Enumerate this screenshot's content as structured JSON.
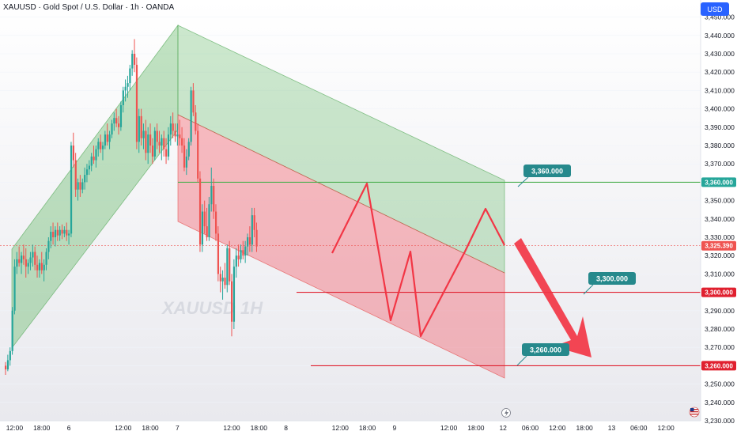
{
  "header": {
    "title": "XAUUSD · Gold Spot / U.S. Dollar · 1h · OANDA"
  },
  "currency_button": "USD",
  "watermark": "XAUUSD 1H",
  "colors": {
    "bull": "#26a69a",
    "bear": "#ef5350",
    "tag_bg": "#26898c",
    "red_line": "#e0202f"
  },
  "chart_data": {
    "type": "candlestick",
    "title": "",
    "y_axis": {
      "min": 3230,
      "max": 3455,
      "ticks": [
        3230,
        3240,
        3250,
        3260,
        3270,
        3280,
        3290,
        3300,
        3310,
        3320,
        3330,
        3340,
        3350,
        3360,
        3370,
        3380,
        3390,
        3400,
        3410,
        3420,
        3430,
        3440,
        3450
      ],
      "tick_labels": [
        "3,230.000",
        "3,240.000",
        "3,250.000",
        "3,260.000",
        "3,270.000",
        "3,280.000",
        "3,290.000",
        "3,300.000",
        "3,310.000",
        "3,320.000",
        "3,330.000",
        "3,340.000",
        "3,350.000",
        "3,360.000",
        "3,370.000",
        "3,380.000",
        "3,390.000",
        "3,400.000",
        "3,410.000",
        "3,420.000",
        "3,430.000",
        "3,440.000",
        "3,450.000"
      ]
    },
    "x_axis": {
      "labels": [
        {
          "bar": 4,
          "text": "12:00"
        },
        {
          "bar": 16,
          "text": "18:00"
        },
        {
          "bar": 28,
          "text": "6"
        },
        {
          "bar": 52,
          "text": "12:00"
        },
        {
          "bar": 64,
          "text": "18:00"
        },
        {
          "bar": 76,
          "text": "7"
        },
        {
          "bar": 100,
          "text": "12:00"
        },
        {
          "bar": 112,
          "text": "18:00"
        },
        {
          "bar": 124,
          "text": "8"
        },
        {
          "bar": 148,
          "text": "12:00"
        },
        {
          "bar": 160,
          "text": "18:00"
        },
        {
          "bar": 172,
          "text": "9"
        },
        {
          "bar": 196,
          "text": "12:00"
        },
        {
          "bar": 208,
          "text": "18:00"
        },
        {
          "bar": 220,
          "text": "12"
        },
        {
          "bar": 232,
          "text": "06:00"
        },
        {
          "bar": 244,
          "text": "12:00"
        },
        {
          "bar": 256,
          "text": "18:00"
        },
        {
          "bar": 268,
          "text": "13"
        },
        {
          "bar": 280,
          "text": "06:00"
        },
        {
          "bar": 292,
          "text": "12:00"
        }
      ]
    },
    "candles": [
      [
        3260,
        3262,
        3255,
        3258
      ],
      [
        3258,
        3266,
        3257,
        3263
      ],
      [
        3263,
        3270,
        3260,
        3268
      ],
      [
        3268,
        3292,
        3266,
        3290
      ],
      [
        3290,
        3318,
        3288,
        3314
      ],
      [
        3314,
        3322,
        3310,
        3318
      ],
      [
        3318,
        3325,
        3314,
        3316
      ],
      [
        3316,
        3322,
        3310,
        3320
      ],
      [
        3320,
        3326,
        3315,
        3318
      ],
      [
        3318,
        3324,
        3308,
        3314
      ],
      [
        3314,
        3318,
        3310,
        3316
      ],
      [
        3316,
        3322,
        3312,
        3319
      ],
      [
        3319,
        3326,
        3314,
        3322
      ],
      [
        3322,
        3325,
        3312,
        3315
      ],
      [
        3315,
        3320,
        3308,
        3312
      ],
      [
        3312,
        3318,
        3308,
        3316
      ],
      [
        3316,
        3322,
        3310,
        3312
      ],
      [
        3312,
        3318,
        3306,
        3315
      ],
      [
        3315,
        3324,
        3312,
        3322
      ],
      [
        3322,
        3330,
        3318,
        3328
      ],
      [
        3328,
        3336,
        3324,
        3333
      ],
      [
        3333,
        3338,
        3326,
        3330
      ],
      [
        3330,
        3336,
        3325,
        3334
      ],
      [
        3334,
        3338,
        3328,
        3331
      ],
      [
        3331,
        3336,
        3328,
        3334
      ],
      [
        3334,
        3337,
        3329,
        3332
      ],
      [
        3332,
        3336,
        3330,
        3334
      ],
      [
        3334,
        3338,
        3328,
        3331
      ],
      [
        3331,
        3334,
        3326,
        3332
      ],
      [
        3332,
        3382,
        3330,
        3380
      ],
      [
        3380,
        3387,
        3368,
        3372
      ],
      [
        3372,
        3376,
        3352,
        3356
      ],
      [
        3356,
        3362,
        3350,
        3360
      ],
      [
        3360,
        3364,
        3352,
        3356
      ],
      [
        3356,
        3362,
        3354,
        3360
      ],
      [
        3360,
        3368,
        3356,
        3364
      ],
      [
        3364,
        3370,
        3360,
        3367
      ],
      [
        3367,
        3372,
        3364,
        3369
      ],
      [
        3369,
        3376,
        3366,
        3374
      ],
      [
        3374,
        3380,
        3370,
        3372
      ],
      [
        3372,
        3380,
        3368,
        3378
      ],
      [
        3378,
        3384,
        3374,
        3382
      ],
      [
        3382,
        3386,
        3376,
        3378
      ],
      [
        3378,
        3382,
        3372,
        3380
      ],
      [
        3380,
        3388,
        3378,
        3386
      ],
      [
        3386,
        3392,
        3380,
        3382
      ],
      [
        3382,
        3388,
        3378,
        3386
      ],
      [
        3386,
        3394,
        3384,
        3392
      ],
      [
        3392,
        3398,
        3388,
        3395
      ],
      [
        3395,
        3400,
        3390,
        3392
      ],
      [
        3392,
        3396,
        3386,
        3390
      ],
      [
        3390,
        3404,
        3388,
        3402
      ],
      [
        3402,
        3412,
        3398,
        3410
      ],
      [
        3410,
        3416,
        3404,
        3412
      ],
      [
        3412,
        3418,
        3406,
        3414
      ],
      [
        3414,
        3424,
        3410,
        3422
      ],
      [
        3422,
        3432,
        3418,
        3430
      ],
      [
        3430,
        3438,
        3420,
        3424
      ],
      [
        3424,
        3428,
        3378,
        3382
      ],
      [
        3382,
        3400,
        3376,
        3396
      ],
      [
        3396,
        3400,
        3380,
        3384
      ],
      [
        3384,
        3392,
        3378,
        3388
      ],
      [
        3388,
        3394,
        3372,
        3376
      ],
      [
        3376,
        3390,
        3370,
        3386
      ],
      [
        3386,
        3392,
        3376,
        3380
      ],
      [
        3380,
        3384,
        3370,
        3374
      ],
      [
        3374,
        3390,
        3372,
        3388
      ],
      [
        3388,
        3392,
        3378,
        3382
      ],
      [
        3382,
        3388,
        3376,
        3380
      ],
      [
        3380,
        3386,
        3372,
        3384
      ],
      [
        3384,
        3388,
        3374,
        3378
      ],
      [
        3378,
        3384,
        3370,
        3374
      ],
      [
        3374,
        3390,
        3372,
        3386
      ],
      [
        3386,
        3396,
        3380,
        3392
      ],
      [
        3392,
        3398,
        3384,
        3388
      ],
      [
        3388,
        3392,
        3382,
        3385
      ],
      [
        3385,
        3392,
        3380,
        3386
      ],
      [
        3386,
        3394,
        3380,
        3384
      ],
      [
        3384,
        3390,
        3376,
        3380
      ],
      [
        3380,
        3384,
        3366,
        3368
      ],
      [
        3368,
        3378,
        3364,
        3374
      ],
      [
        3374,
        3384,
        3372,
        3382
      ],
      [
        3382,
        3412,
        3380,
        3410
      ],
      [
        3410,
        3414,
        3396,
        3398
      ],
      [
        3398,
        3402,
        3386,
        3388
      ],
      [
        3388,
        3392,
        3360,
        3362
      ],
      [
        3362,
        3366,
        3322,
        3326
      ],
      [
        3326,
        3348,
        3322,
        3344
      ],
      [
        3344,
        3350,
        3332,
        3336
      ],
      [
        3336,
        3346,
        3328,
        3330
      ],
      [
        3330,
        3352,
        3328,
        3348
      ],
      [
        3348,
        3368,
        3344,
        3358
      ],
      [
        3358,
        3362,
        3340,
        3344
      ],
      [
        3344,
        3348,
        3328,
        3332
      ],
      [
        3332,
        3336,
        3306,
        3310
      ],
      [
        3310,
        3314,
        3300,
        3306
      ],
      [
        3306,
        3312,
        3296,
        3308
      ],
      [
        3308,
        3316,
        3302,
        3304
      ],
      [
        3304,
        3326,
        3300,
        3324
      ],
      [
        3324,
        3328,
        3304,
        3306
      ],
      [
        3306,
        3310,
        3276,
        3284
      ],
      [
        3284,
        3318,
        3280,
        3314
      ],
      [
        3314,
        3324,
        3308,
        3320
      ],
      [
        3320,
        3326,
        3314,
        3318
      ],
      [
        3318,
        3326,
        3316,
        3323
      ],
      [
        3323,
        3328,
        3318,
        3320
      ],
      [
        3320,
        3328,
        3316,
        3325
      ],
      [
        3325,
        3332,
        3320,
        3330
      ],
      [
        3330,
        3336,
        3322,
        3326
      ],
      [
        3326,
        3346,
        3322,
        3342
      ],
      [
        3342,
        3346,
        3330,
        3334
      ],
      [
        3334,
        3338,
        3322,
        3325
      ]
    ],
    "horizontal_lines": [
      {
        "price": 3360,
        "color": "#4caf50"
      },
      {
        "price": 3300,
        "color": "#e0202f"
      },
      {
        "price": 3260,
        "color": "#e0202f"
      }
    ],
    "annotations": [
      {
        "text": "3,360.000",
        "price": 3360
      },
      {
        "text": "3,300.000",
        "price": 3300
      },
      {
        "text": "3,260.000",
        "price": 3260
      }
    ],
    "axis_price_labels": [
      {
        "text": "3,360.000",
        "price": 3360,
        "color": "#26a69a"
      },
      {
        "text": "3,325.390",
        "price": 3325.39,
        "color": "#ef5350"
      },
      {
        "text": "3,300.000",
        "price": 3300,
        "color": "#e0202f"
      },
      {
        "text": "3,260.000",
        "price": 3260,
        "color": "#e0202f"
      }
    ],
    "current_price": 3325.39
  }
}
